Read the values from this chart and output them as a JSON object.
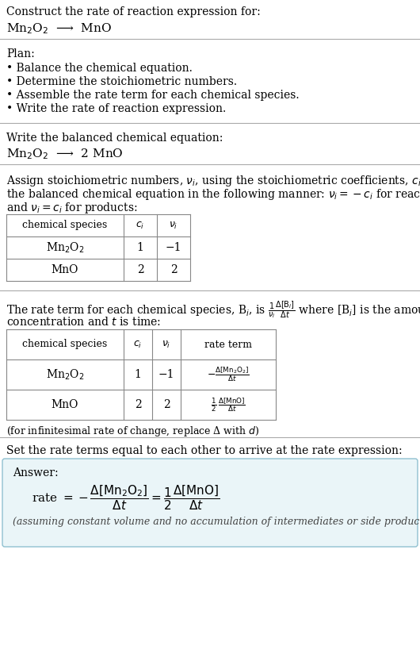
{
  "bg_color": "#ffffff",
  "text_color": "#000000",
  "gray_line": "#aaaaaa",
  "font_family": "DejaVu Serif",
  "section1_line1": "Construct the rate of reaction expression for:",
  "section1_line2": "Mn$_2$O$_2$  ⟶  MnO",
  "plan_title": "Plan:",
  "plan_bullets": [
    "• Balance the chemical equation.",
    "• Determine the stoichiometric numbers.",
    "• Assemble the rate term for each chemical species.",
    "• Write the rate of reaction expression."
  ],
  "sec3_title": "Write the balanced chemical equation:",
  "sec3_eq": "Mn$_2$O$_2$  ⟶  2 MnO",
  "sec4_line1": "Assign stoichiometric numbers, $\\nu_i$, using the stoichiometric coefficients, $c_i$, from",
  "sec4_line2": "the balanced chemical equation in the following manner: $\\nu_i = -c_i$ for reactants",
  "sec4_line3": "and $\\nu_i = c_i$ for products:",
  "tbl1_h": [
    "chemical species",
    "$c_i$",
    "$\\nu_i$"
  ],
  "tbl1_rows": [
    [
      "Mn$_2$O$_2$",
      "1",
      "−1"
    ],
    [
      "MnO",
      "2",
      "2"
    ]
  ],
  "sec5_line1": "The rate term for each chemical species, B$_i$, is $\\frac{1}{\\nu_i}\\frac{\\Delta[\\mathrm{B}_i]}{\\Delta t}$ where [B$_i$] is the amount",
  "sec5_line2": "concentration and $t$ is time:",
  "tbl2_h": [
    "chemical species",
    "$c_i$",
    "$\\nu_i$",
    "rate term"
  ],
  "tbl2_rows": [
    [
      "Mn$_2$O$_2$",
      "1",
      "−1",
      "$-\\frac{\\Delta[\\mathrm{Mn_2O_2}]}{\\Delta t}$"
    ],
    [
      "MnO",
      "2",
      "2",
      "$\\frac{1}{2}\\,\\frac{\\Delta[\\mathrm{MnO}]}{\\Delta t}$"
    ]
  ],
  "note_inf": "(for infinitesimal rate of change, replace Δ with $d$)",
  "sec6_title": "Set the rate terms equal to each other to arrive at the rate expression:",
  "ans_label": "Answer:",
  "ans_eq": "rate $= -\\dfrac{\\Delta[\\mathrm{Mn_2O_2}]}{\\Delta t} = \\dfrac{1}{2}\\dfrac{\\Delta[\\mathrm{MnO}]}{\\Delta t}$",
  "ans_note": "(assuming constant volume and no accumulation of intermediates or side products)",
  "ans_box_fill": "#eaf5f8",
  "ans_box_edge": "#90c0d0"
}
